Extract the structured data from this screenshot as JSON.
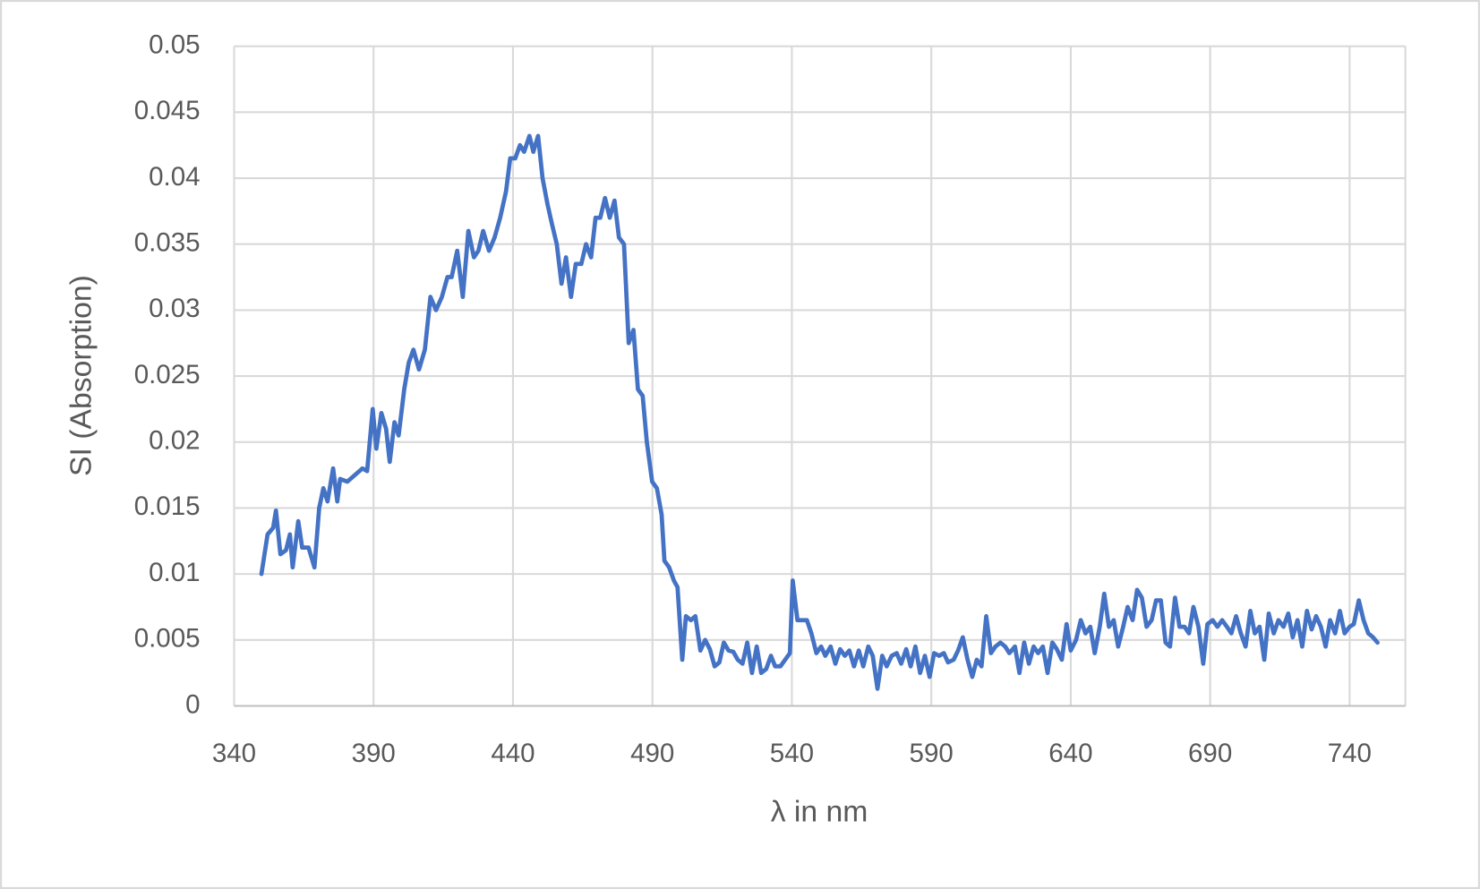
{
  "chart_data": {
    "type": "line",
    "x_label": "λ in nm",
    "y_label": "SI (Absorption)",
    "xlim": [
      340,
      760
    ],
    "ylim": [
      0,
      0.05
    ],
    "xticks": [
      340,
      390,
      440,
      490,
      540,
      590,
      640,
      690,
      740
    ],
    "yticks": [
      0,
      0.005,
      0.01,
      0.015,
      0.02,
      0.025,
      0.03,
      0.035,
      0.04,
      0.045,
      0.05
    ],
    "grid": true,
    "series": [
      {
        "color": "#4472c4",
        "x": [
          349.8,
          352,
          354,
          355,
          356.6,
          358.6,
          360,
          361,
          363,
          364.4,
          366.7,
          368.8,
          370.5,
          372,
          373.5,
          375.5,
          377,
          378,
          380.6,
          383.3,
          386,
          387.7,
          389.7,
          391,
          392.8,
          394.5,
          395.8,
          397.5,
          399,
          401,
          402.6,
          404.3,
          406.3,
          408.4,
          410.4,
          412.4,
          414.5,
          416.5,
          418,
          420,
          422,
          424,
          426,
          427.6,
          429.3,
          431.4,
          433.4,
          435.4,
          437.5,
          439,
          440.8,
          442.5,
          444,
          445.9,
          447.3,
          449,
          450.6,
          452.4,
          454,
          455.7,
          457.4,
          459,
          460.8,
          462.5,
          464.5,
          466.2,
          468,
          469.6,
          471.3,
          473,
          474.7,
          476.4,
          478,
          479.8,
          481.5,
          483.2,
          484.8,
          486.5,
          488,
          489.9,
          491.6,
          493.3,
          494.3,
          496,
          497.7,
          499,
          500.7,
          502,
          503.8,
          505.4,
          507.2,
          508.9,
          510.6,
          512.3,
          514,
          515.6,
          517.3,
          519,
          520.6,
          522.3,
          524,
          525.7,
          527.4,
          529,
          530.8,
          532.5,
          534,
          535.9,
          537.6,
          539.3,
          540.3,
          542,
          543.7,
          545.4,
          547,
          548.8,
          550.5,
          552,
          553.9,
          555.6,
          557.3,
          559,
          560.6,
          562.3,
          564,
          565.6,
          567.4,
          569,
          570.7,
          572.4,
          574,
          575.8,
          577.6,
          579.2,
          581,
          582.6,
          584.3,
          586,
          587.7,
          589.4,
          591,
          592.8,
          594.5,
          596,
          598,
          599.6,
          601.3,
          603,
          604.7,
          606.3,
          608,
          609.7,
          611.4,
          613,
          614.8,
          616.5,
          618,
          620,
          621.6,
          623.3,
          625,
          626.7,
          628.3,
          630,
          631.7,
          633.4,
          635,
          636.8,
          638.5,
          640,
          641.9,
          643.6,
          645.3,
          647,
          648.6,
          650.4,
          652,
          653.7,
          655.4,
          657,
          658.8,
          660.4,
          662.2,
          663.8,
          665.5,
          667.2,
          669,
          670.6,
          672.3,
          674,
          675.6,
          677.4,
          679,
          680.8,
          682.4,
          684,
          685.8,
          687.5,
          689,
          690.9,
          692.6,
          694.3,
          696,
          697.6,
          699.3,
          701,
          702.7,
          704.4,
          706,
          707.7,
          709.4,
          711,
          712.8,
          714.5,
          716.3,
          718,
          719.6,
          721.3,
          723,
          724.7,
          726.4,
          728,
          729.7,
          731.4,
          733,
          734.8,
          736.5,
          738.2,
          740,
          741.5,
          743.3,
          745,
          746.7,
          748.4,
          750
        ],
        "values": [
          0.01,
          0.013,
          0.0135,
          0.0148,
          0.0115,
          0.0118,
          0.013,
          0.0105,
          0.014,
          0.012,
          0.012,
          0.0105,
          0.015,
          0.0165,
          0.0155,
          0.018,
          0.0155,
          0.0172,
          0.017,
          0.0175,
          0.018,
          0.0178,
          0.0225,
          0.0195,
          0.0222,
          0.021,
          0.0185,
          0.0215,
          0.0205,
          0.024,
          0.026,
          0.027,
          0.0255,
          0.027,
          0.031,
          0.03,
          0.031,
          0.0325,
          0.0325,
          0.0345,
          0.031,
          0.036,
          0.034,
          0.0345,
          0.036,
          0.0345,
          0.0355,
          0.037,
          0.039,
          0.0415,
          0.0415,
          0.0425,
          0.042,
          0.0432,
          0.042,
          0.0432,
          0.04,
          0.038,
          0.0365,
          0.035,
          0.032,
          0.034,
          0.031,
          0.0335,
          0.0335,
          0.035,
          0.034,
          0.037,
          0.037,
          0.0385,
          0.037,
          0.0383,
          0.0355,
          0.035,
          0.0275,
          0.0285,
          0.024,
          0.0235,
          0.02,
          0.017,
          0.0165,
          0.0145,
          0.011,
          0.0105,
          0.0095,
          0.009,
          0.0035,
          0.0068,
          0.0065,
          0.0068,
          0.0042,
          0.005,
          0.0043,
          0.003,
          0.0033,
          0.0048,
          0.0042,
          0.0041,
          0.0035,
          0.0032,
          0.0048,
          0.0025,
          0.0045,
          0.0025,
          0.0028,
          0.0038,
          0.003,
          0.003,
          0.0035,
          0.004,
          0.0095,
          0.0065,
          0.0065,
          0.0065,
          0.0055,
          0.004,
          0.0045,
          0.0038,
          0.0045,
          0.0032,
          0.0043,
          0.0038,
          0.0042,
          0.003,
          0.0042,
          0.003,
          0.0045,
          0.0038,
          0.0013,
          0.0038,
          0.003,
          0.0038,
          0.004,
          0.0032,
          0.0043,
          0.003,
          0.0045,
          0.0025,
          0.0038,
          0.0022,
          0.004,
          0.0038,
          0.004,
          0.0033,
          0.0035,
          0.0042,
          0.0052,
          0.0035,
          0.0022,
          0.0035,
          0.003,
          0.0068,
          0.004,
          0.0045,
          0.0048,
          0.0045,
          0.004,
          0.0045,
          0.0025,
          0.0048,
          0.0032,
          0.0045,
          0.004,
          0.0045,
          0.0025,
          0.0048,
          0.0043,
          0.0035,
          0.0062,
          0.0042,
          0.005,
          0.0065,
          0.0055,
          0.006,
          0.004,
          0.006,
          0.0085,
          0.006,
          0.0065,
          0.0045,
          0.006,
          0.0075,
          0.0065,
          0.0088,
          0.0082,
          0.006,
          0.0065,
          0.008,
          0.008,
          0.0048,
          0.0045,
          0.0082,
          0.006,
          0.006,
          0.0055,
          0.0075,
          0.006,
          0.0032,
          0.0062,
          0.0065,
          0.006,
          0.0065,
          0.006,
          0.0055,
          0.0068,
          0.0055,
          0.0045,
          0.0072,
          0.0055,
          0.006,
          0.0035,
          0.007,
          0.0055,
          0.0065,
          0.006,
          0.007,
          0.0052,
          0.0065,
          0.0045,
          0.0072,
          0.0058,
          0.0068,
          0.006,
          0.0045,
          0.0065,
          0.0055,
          0.0072,
          0.0055,
          0.006,
          0.0062,
          0.008,
          0.0065,
          0.0055,
          0.0052,
          0.0048
        ]
      }
    ]
  }
}
